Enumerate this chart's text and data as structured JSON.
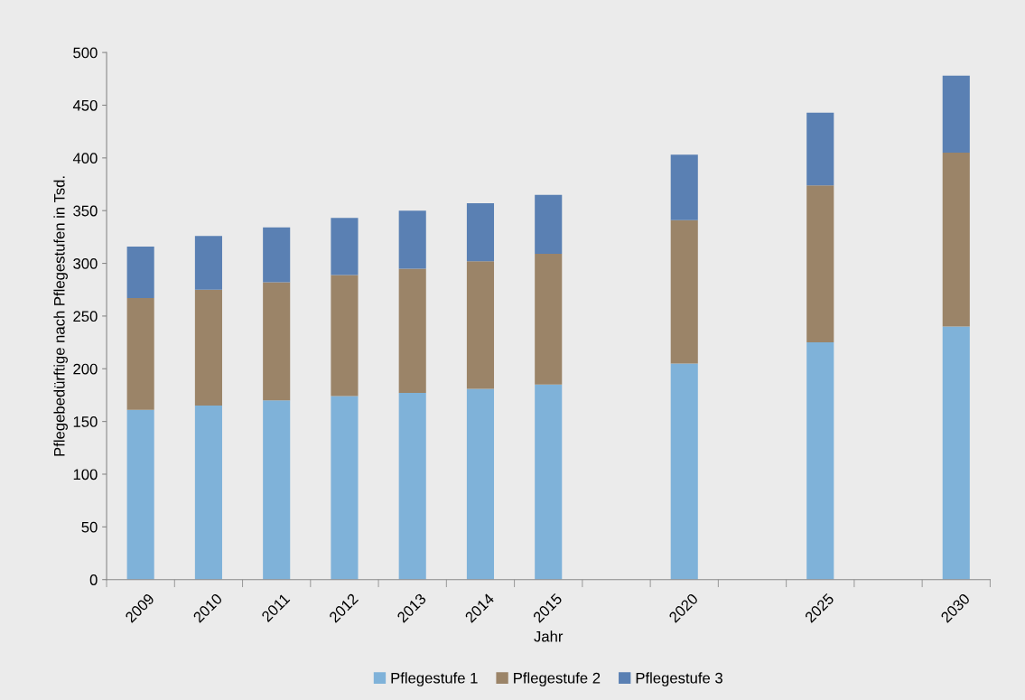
{
  "chart_data": {
    "type": "bar",
    "stacked": true,
    "xlabel": "Jahr",
    "ylabel": "Pflegebedürftige nach Pflegestufen in Tsd.",
    "categories": [
      "2009",
      "2010",
      "2011",
      "2012",
      "2013",
      "2014",
      "2015",
      null,
      "2020",
      null,
      "2025",
      null,
      "2030"
    ],
    "series": [
      {
        "name": "Pflegestufe 1",
        "color": "#7fb2d9",
        "values": [
          161,
          165,
          170,
          174,
          177,
          181,
          185,
          null,
          205,
          null,
          225,
          null,
          240
        ]
      },
      {
        "name": "Pflegestufe 2",
        "color": "#9b8468",
        "values": [
          106,
          110,
          112,
          115,
          118,
          121,
          124,
          null,
          136,
          null,
          149,
          null,
          165
        ]
      },
      {
        "name": "Pflegestufe 3",
        "color": "#5a80b3",
        "values": [
          49,
          51,
          52,
          54,
          55,
          55,
          56,
          null,
          62,
          null,
          69,
          null,
          73
        ]
      }
    ],
    "ylim": [
      0,
      500
    ],
    "yticks": [
      0,
      50,
      100,
      150,
      200,
      250,
      300,
      350,
      400,
      450,
      500
    ],
    "grid": false,
    "legend": "bottom"
  }
}
